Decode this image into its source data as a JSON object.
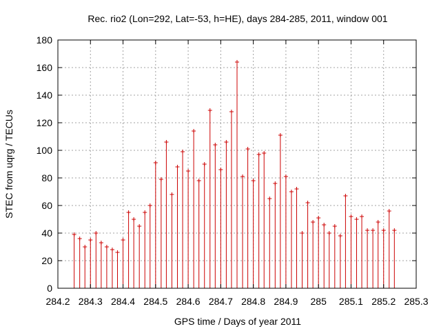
{
  "chart_data": {
    "type": "scatter",
    "title": "Rec. rio2 (Lon=292, Lat=-53, h=HE), days 284-285, 2011, window 001",
    "xlabel": "GPS time / Days of year 2011",
    "ylabel": "STEC from uqrg / TECUs",
    "xlim": [
      284.2,
      285.3
    ],
    "ylim": [
      0,
      180
    ],
    "xticks": [
      "284.2",
      "284.3",
      "284.4",
      "284.5",
      "284.6",
      "284.7",
      "284.8",
      "284.9",
      "285",
      "285.1",
      "285.2",
      "285.3"
    ],
    "yticks": [
      "0",
      "20",
      "40",
      "60",
      "80",
      "100",
      "120",
      "140",
      "160",
      "180"
    ],
    "grid": true,
    "color": "#cc0000",
    "style": "impulses-with-points",
    "series": [
      {
        "x": [
          284.25,
          284.267,
          284.283,
          284.3,
          284.317,
          284.333,
          284.35,
          284.367,
          284.383,
          284.4,
          284.417,
          284.433,
          284.45,
          284.467,
          284.483,
          284.5,
          284.517,
          284.533,
          284.55,
          284.567,
          284.583,
          284.6,
          284.617,
          284.633,
          284.65,
          284.667,
          284.683,
          284.7,
          284.717,
          284.733,
          284.75,
          284.767,
          284.783,
          284.8,
          284.817,
          284.833,
          284.85,
          284.867,
          284.883,
          284.9,
          284.917,
          284.933,
          284.95,
          284.967,
          284.983,
          285.0,
          285.017,
          285.033,
          285.05,
          285.067,
          285.083,
          285.1,
          285.117,
          285.133,
          285.15,
          285.167,
          285.183,
          285.2,
          285.217,
          285.233
        ],
        "y": [
          39,
          36,
          30,
          35,
          40,
          33,
          30,
          28,
          26,
          35,
          55,
          50,
          45,
          55,
          60,
          91,
          79,
          106,
          68,
          88,
          99,
          85,
          114,
          78,
          90,
          129,
          104,
          86,
          106,
          128,
          164,
          81,
          101,
          78,
          97,
          98,
          65,
          76,
          111,
          81,
          70,
          72,
          40,
          62,
          48,
          51,
          46,
          40,
          45,
          38,
          67,
          52,
          50,
          52,
          42,
          42,
          48,
          42,
          56,
          42
        ]
      }
    ]
  }
}
